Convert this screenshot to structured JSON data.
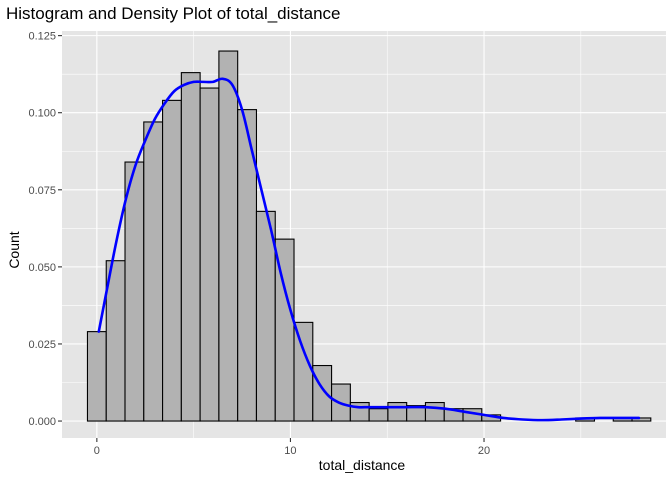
{
  "chart_data": {
    "type": "bar",
    "title": "Histogram and Density Plot of total_distance",
    "xlabel": "total_distance",
    "ylabel": "Count",
    "xlim": [
      -1.8,
      29.4
    ],
    "ylim": [
      -0.0055,
      0.1265
    ],
    "x_ticks": [
      0,
      10,
      20
    ],
    "y_ticks": [
      0.0,
      0.025,
      0.05,
      0.075,
      0.1,
      0.125
    ],
    "y_tick_labels": [
      "0.000",
      "0.025",
      "0.050",
      "0.075",
      "0.100",
      "0.125"
    ],
    "x_tick_labels": [
      "0",
      "10",
      "20"
    ],
    "grid": true,
    "colors": {
      "panel": "#e5e5e5",
      "grid": "#ffffff",
      "bar_fill": "#b2b2b2",
      "bar_stroke": "#000000",
      "density": "#0000ff"
    },
    "series": [
      {
        "type": "histogram",
        "bin_width": 0.97,
        "bin_centers": [
          0.0,
          0.97,
          1.94,
          2.91,
          3.88,
          4.85,
          5.82,
          6.79,
          7.76,
          8.73,
          9.7,
          10.67,
          11.64,
          12.61,
          13.58,
          14.55,
          15.52,
          16.49,
          17.46,
          18.43,
          19.4,
          20.37,
          21.34,
          22.31,
          23.28,
          24.25,
          25.22,
          26.19,
          27.16,
          28.13
        ],
        "values": [
          0.029,
          0.052,
          0.084,
          0.097,
          0.104,
          0.113,
          0.108,
          0.12,
          0.101,
          0.068,
          0.059,
          0.032,
          0.018,
          0.012,
          0.006,
          0.004,
          0.006,
          0.005,
          0.006,
          0.004,
          0.004,
          0.002,
          0.0,
          0.0,
          0.0,
          0.0,
          0.001,
          0.0,
          0.001,
          0.001
        ]
      },
      {
        "type": "density",
        "x": [
          0.1,
          0.5,
          1.0,
          1.5,
          2.0,
          2.5,
          3.0,
          3.5,
          4.0,
          4.5,
          5.0,
          5.5,
          6.0,
          6.5,
          7.0,
          7.5,
          8.0,
          8.5,
          9.0,
          9.5,
          10.0,
          10.5,
          11.0,
          11.5,
          12.0,
          12.5,
          13.0,
          13.5,
          14.0,
          14.5,
          15.0,
          15.5,
          16.0,
          17.0,
          18.0,
          19.0,
          20.0,
          21.0,
          22.0,
          23.0,
          24.0,
          25.0,
          26.0,
          27.0,
          28.0
        ],
        "y": [
          0.029,
          0.042,
          0.058,
          0.072,
          0.083,
          0.091,
          0.098,
          0.103,
          0.107,
          0.109,
          0.11,
          0.11,
          0.11,
          0.111,
          0.109,
          0.101,
          0.088,
          0.075,
          0.062,
          0.048,
          0.036,
          0.026,
          0.018,
          0.012,
          0.008,
          0.006,
          0.005,
          0.0045,
          0.0045,
          0.0045,
          0.0045,
          0.0045,
          0.0045,
          0.0045,
          0.004,
          0.003,
          0.002,
          0.001,
          0.0005,
          0.0003,
          0.0005,
          0.0008,
          0.001,
          0.001,
          0.001
        ]
      }
    ]
  }
}
